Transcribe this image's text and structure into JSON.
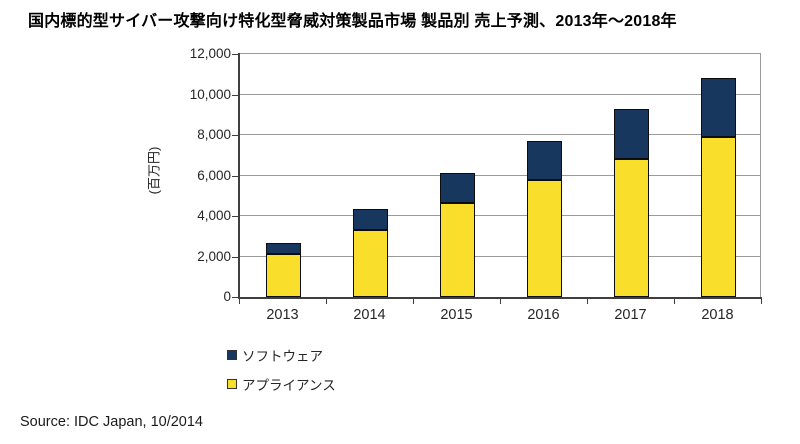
{
  "title": "国内標的型サイバー攻撃向け特化型脅威対策製品市場 製品別 売上予測、2013年～2018年",
  "source": "Source: IDC Japan, 10/2014",
  "chart_data": {
    "type": "bar",
    "stacked": true,
    "title": "国内標的型サイバー攻撃向け特化型脅威対策製品市場 製品別 売上予測、2013年～2018年",
    "ylabel": "(百万円)",
    "xlabel": "",
    "categories": [
      "2013",
      "2014",
      "2015",
      "2016",
      "2017",
      "2018"
    ],
    "series": [
      {
        "name": "ソフトウェア",
        "key": "software",
        "color": "#17375E",
        "values": [
          550,
          1050,
          1450,
          1900,
          2500,
          2900
        ]
      },
      {
        "name": "アプライアンス",
        "key": "appliance",
        "color": "#F9DF2B",
        "values": [
          2100,
          3300,
          4650,
          5800,
          6800,
          7900
        ]
      }
    ],
    "totals": [
      2650,
      4350,
      6100,
      7700,
      9300,
      10800
    ],
    "ylim": [
      0,
      12000
    ],
    "ytick_interval": 2000,
    "ytick_labels": [
      "0",
      "2,000",
      "4,000",
      "6,000",
      "8,000",
      "10,000",
      "12,000"
    ],
    "grid": true,
    "legend_position": "bottom-left",
    "legend_order": [
      "ソフトウェア",
      "アプライアンス"
    ],
    "colors": {
      "software": "#17375E",
      "appliance": "#F9DF2B",
      "bar_border": "#0d0d0d",
      "gridline": "#9a9a9a",
      "axis": "#3f3f3f",
      "text": "#262626",
      "title_text": "#000000",
      "background": "#ffffff"
    }
  }
}
